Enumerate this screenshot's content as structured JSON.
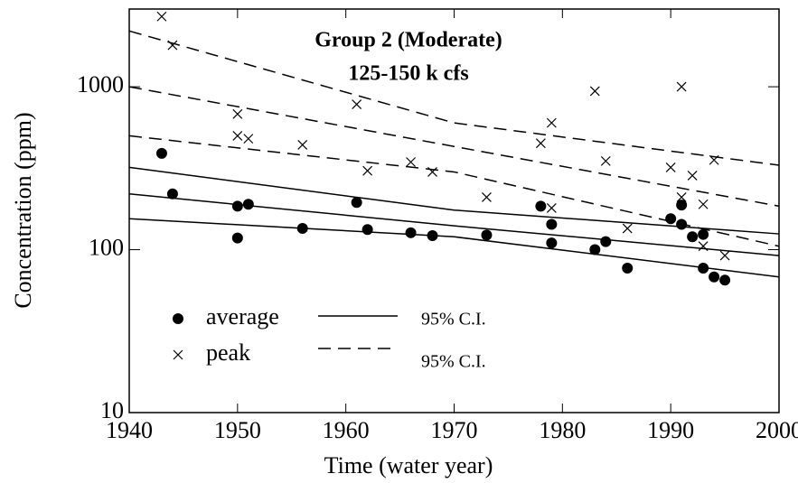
{
  "chart_data": {
    "type": "scatter",
    "title": [
      "Group 2 (Moderate)",
      "125-150 k cfs"
    ],
    "xlabel": "Time (water year)",
    "ylabel": "Concentration (ppm)",
    "xlim": [
      1940,
      2000
    ],
    "xticks": [
      1940,
      1950,
      1960,
      1970,
      1980,
      1990,
      2000
    ],
    "ylim": [
      10,
      3000
    ],
    "yticks": [
      10,
      100,
      1000
    ],
    "log_y": true,
    "series": [
      {
        "name": "average",
        "marker": "dot",
        "color": "#000000",
        "x": [
          1943,
          1944,
          1950,
          1950,
          1951,
          1956,
          1961,
          1962,
          1966,
          1968,
          1973,
          1978,
          1979,
          1979,
          1983,
          1984,
          1986,
          1990,
          1991,
          1991,
          1992,
          1993,
          1993,
          1994,
          1995
        ],
        "values": [
          390,
          220,
          185,
          118,
          190,
          135,
          195,
          133,
          127,
          122,
          123,
          185,
          143,
          110,
          100,
          112,
          77,
          155,
          188,
          143,
          120,
          124,
          77,
          68,
          65
        ]
      },
      {
        "name": "peak",
        "marker": "cross",
        "color": "#000000",
        "x": [
          1943,
          1944,
          1950,
          1950,
          1951,
          1956,
          1961,
          1962,
          1966,
          1968,
          1973,
          1978,
          1979,
          1979,
          1983,
          1984,
          1986,
          1990,
          1991,
          1991,
          1992,
          1993,
          1993,
          1994,
          1995
        ],
        "values": [
          2700,
          1800,
          680,
          500,
          480,
          440,
          780,
          305,
          345,
          300,
          210,
          450,
          600,
          180,
          940,
          350,
          135,
          320,
          1000,
          210,
          285,
          190,
          105,
          355,
          92
        ]
      }
    ],
    "fit_lines": [
      {
        "style": "solid",
        "x": [
          1940,
          1970,
          2000
        ],
        "values": [
          320,
          175,
          125
        ]
      },
      {
        "style": "solid",
        "x": [
          1940,
          1970,
          2000
        ],
        "values": [
          220,
          140,
          92
        ]
      },
      {
        "style": "solid",
        "x": [
          1940,
          1970,
          2000
        ],
        "values": [
          155,
          120,
          68
        ]
      },
      {
        "style": "dashed",
        "x": [
          1940,
          1970,
          2000
        ],
        "values": [
          2200,
          600,
          330
        ]
      },
      {
        "style": "dashed",
        "x": [
          1940,
          1970,
          2000
        ],
        "values": [
          1000,
          430,
          185
        ]
      },
      {
        "style": "dashed",
        "x": [
          1940,
          1970,
          2000
        ],
        "values": [
          500,
          300,
          105
        ]
      }
    ],
    "legend_lines": [
      {
        "style": "solid",
        "label": "95% C.I."
      },
      {
        "style": "dashed",
        "label": "95% C.I."
      }
    ]
  }
}
